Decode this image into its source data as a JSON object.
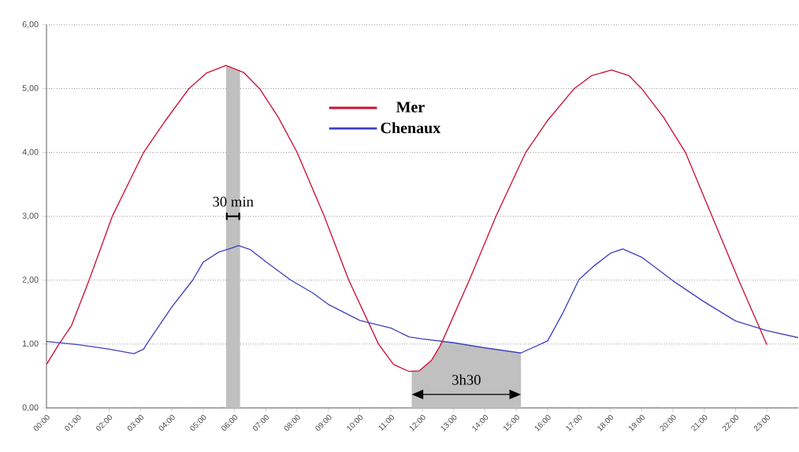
{
  "chart_data": {
    "type": "line",
    "x": [
      0,
      0.4,
      0.8,
      1.36,
      2.1,
      3.1,
      3.8,
      4.55,
      5.1,
      5.73,
      6.3,
      6.8,
      7.4,
      8.0,
      8.87,
      9.65,
      10.6,
      11.08,
      11.58,
      11.9,
      12.3,
      12.6,
      13.5,
      14.35,
      15.3,
      16.0,
      16.85,
      17.4,
      18.04,
      18.6,
      19.0,
      19.7,
      20.4,
      21.25,
      22.1,
      23.0
    ],
    "series": [
      {
        "name": "Mer",
        "color": "#cc1033",
        "values": [
          0.68,
          1.0,
          1.29,
          2.0,
          3.0,
          4.0,
          4.5,
          5.0,
          5.24,
          5.36,
          5.25,
          5.0,
          4.55,
          4.0,
          3.0,
          2.0,
          1.0,
          0.68,
          0.57,
          0.58,
          0.75,
          1.0,
          2.0,
          3.0,
          4.0,
          4.5,
          5.0,
          5.2,
          5.29,
          5.2,
          5.0,
          4.55,
          4.0,
          3.0,
          2.0,
          0.99
        ]
      },
      {
        "name": "Chenaux",
        "color": "#4040c0",
        "x": [
          0,
          1,
          2,
          2.79,
          3.1,
          3.2,
          4,
          4.67,
          5,
          5.5,
          5.9,
          6.13,
          6.5,
          7,
          7.8,
          8.5,
          9,
          10,
          11,
          11.58,
          12,
          13,
          14,
          15.15,
          16,
          16.5,
          17,
          17.5,
          18,
          18.4,
          19,
          20,
          21,
          22,
          23,
          24
        ],
        "values": [
          1.04,
          0.99,
          0.92,
          0.85,
          0.92,
          1.0,
          1.58,
          2.0,
          2.28,
          2.44,
          2.5,
          2.54,
          2.48,
          2.29,
          2.0,
          1.8,
          1.62,
          1.37,
          1.25,
          1.11,
          1.08,
          1.02,
          0.94,
          0.86,
          1.05,
          1.5,
          2.01,
          2.23,
          2.42,
          2.49,
          2.36,
          1.99,
          1.66,
          1.36,
          1.21,
          1.1
        ]
      }
    ],
    "xlim": [
      0,
      24
    ],
    "xticks": [
      {
        "value": 0,
        "label": "00:00"
      },
      {
        "value": 1,
        "label": "01:00"
      },
      {
        "value": 2,
        "label": "02:00"
      },
      {
        "value": 3,
        "label": "03:00"
      },
      {
        "value": 4,
        "label": "04:00"
      },
      {
        "value": 5,
        "label": "05:00"
      },
      {
        "value": 6,
        "label": "06:00"
      },
      {
        "value": 7,
        "label": "07:00"
      },
      {
        "value": 8,
        "label": "08:00"
      },
      {
        "value": 9,
        "label": "09:00"
      },
      {
        "value": 10,
        "label": "10:00"
      },
      {
        "value": 11,
        "label": "11:00"
      },
      {
        "value": 12,
        "label": "12:00"
      },
      {
        "value": 13,
        "label": "13:00"
      },
      {
        "value": 14,
        "label": "14:00"
      },
      {
        "value": 15,
        "label": "15:00"
      },
      {
        "value": 16,
        "label": "16:00"
      },
      {
        "value": 17,
        "label": "17:00"
      },
      {
        "value": 18,
        "label": "18:00"
      },
      {
        "value": 19,
        "label": "19:00"
      },
      {
        "value": 20,
        "label": "20:00"
      },
      {
        "value": 21,
        "label": "21:00"
      },
      {
        "value": 22,
        "label": "22:00"
      },
      {
        "value": 23,
        "label": "23:00"
      }
    ],
    "ylim": [
      0,
      6
    ],
    "yticks": [
      {
        "value": 0,
        "label": "0,00"
      },
      {
        "value": 1,
        "label": "1,00"
      },
      {
        "value": 2,
        "label": "2,00"
      },
      {
        "value": 3,
        "label": "3,00"
      },
      {
        "value": 4,
        "label": "4,00"
      },
      {
        "value": 5,
        "label": "5,00"
      },
      {
        "value": 6,
        "label": "6,00"
      }
    ],
    "bands": [
      {
        "axis": "x",
        "from": 5.73,
        "to": 6.18,
        "color": "#c0c0c0"
      },
      {
        "axis": "x",
        "from": 11.66,
        "to": 15.15,
        "color": "#c0c0c0"
      }
    ],
    "annotations": [
      "30 min",
      "3h30"
    ],
    "grid": "y",
    "legend": "top",
    "marker": "none",
    "line_style": "solid"
  }
}
